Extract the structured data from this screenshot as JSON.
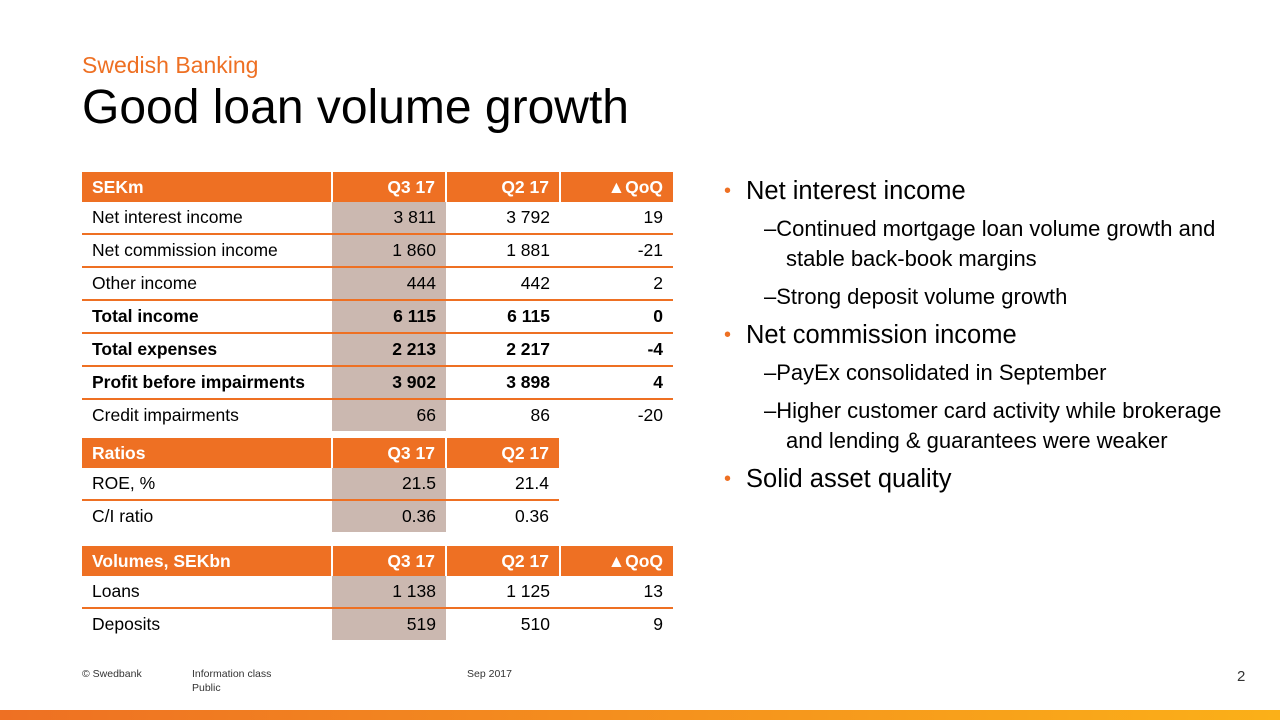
{
  "header": {
    "subtitle": "Swedish Banking",
    "title": "Good loan volume growth"
  },
  "colors": {
    "accent": "#ee7023",
    "highlight": "#cbb8b0"
  },
  "tables": [
    {
      "headers": [
        "SEKm",
        "Q3 17",
        "Q2 17",
        "▲QoQ"
      ],
      "rows": [
        {
          "bold": false,
          "cells": [
            "Net interest income",
            "3 811",
            "3 792",
            "19"
          ]
        },
        {
          "bold": false,
          "cells": [
            "Net commission income",
            "1 860",
            "1 881",
            "-21"
          ]
        },
        {
          "bold": false,
          "cells": [
            "Other income",
            "444",
            "442",
            "2"
          ]
        },
        {
          "bold": true,
          "cells": [
            "Total income",
            "6 115",
            "6 115",
            "0"
          ]
        },
        {
          "bold": true,
          "cells": [
            "Total expenses",
            "2 213",
            "2 217",
            "-4"
          ]
        },
        {
          "bold": true,
          "cells": [
            "Profit before impairments",
            "3 902",
            "3 898",
            "4"
          ]
        },
        {
          "bold": false,
          "cells": [
            "Credit impairments",
            "66",
            "86",
            "-20"
          ]
        }
      ]
    },
    {
      "headers": [
        "Ratios",
        "Q3 17",
        "Q2 17"
      ],
      "rows": [
        {
          "bold": false,
          "cells": [
            "ROE, %",
            "21.5",
            "21.4"
          ]
        },
        {
          "bold": false,
          "cells": [
            "C/I ratio",
            "0.36",
            "0.36"
          ]
        }
      ]
    },
    {
      "headers": [
        "Volumes, SEKbn",
        "Q3 17",
        "Q2 17",
        "▲QoQ"
      ],
      "rows": [
        {
          "bold": false,
          "cells": [
            "Loans",
            "1 138",
            "1 125",
            "13"
          ]
        },
        {
          "bold": false,
          "cells": [
            "Deposits",
            "519",
            "510",
            "9"
          ]
        }
      ]
    }
  ],
  "bullets": [
    {
      "text": "Net interest income",
      "sub": [
        "Continued mortgage loan volume growth and stable back-book margins",
        "Strong deposit volume growth"
      ]
    },
    {
      "text": "Net commission income",
      "sub": [
        "PayEx consolidated in September",
        "Higher customer card activity while brokerage and lending & guarantees were weaker"
      ]
    },
    {
      "text": "Solid asset quality",
      "sub": []
    }
  ],
  "footer": {
    "copyright": "© Swedbank",
    "info_class": "Information class",
    "info_value": "Public",
    "date": "Sep 2017",
    "page": "2"
  }
}
